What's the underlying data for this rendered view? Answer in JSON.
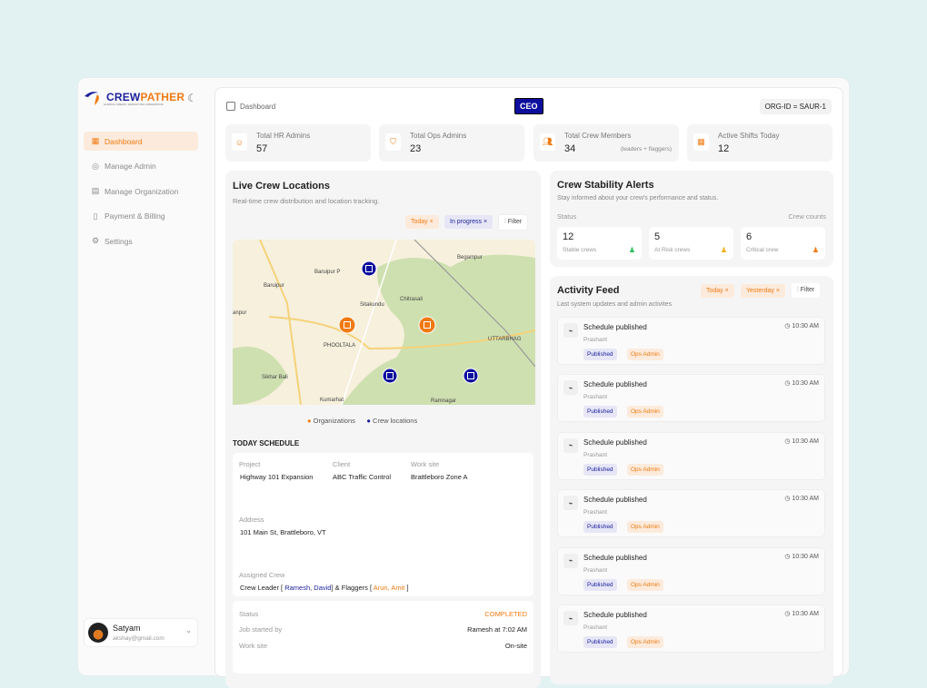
{
  "brand": {
    "name_a": "CREW",
    "name_b": "PATHER",
    "tagline": "GUIDING CREWS, SIMPLIFYING OPERATIONS"
  },
  "sidebar": {
    "items": [
      {
        "label": "Dashboard",
        "icon": "grid-icon",
        "active": true
      },
      {
        "label": "Manage Admin",
        "icon": "user-circle-icon"
      },
      {
        "label": "Manage Organization",
        "icon": "building-icon"
      },
      {
        "label": "Payment & Billing",
        "icon": "receipt-icon"
      },
      {
        "label": "Settings",
        "icon": "gear-icon"
      }
    ]
  },
  "user": {
    "name": "Satyam",
    "email": "akshay@gmail.com"
  },
  "header": {
    "breadcrumb": "Dashboard",
    "role": "CEO",
    "org_id": "ORG-ID = SAUR-1"
  },
  "stats": [
    {
      "label": "Total HR Admins",
      "value": "57",
      "note": ""
    },
    {
      "label": "Total Ops Admins",
      "value": "23",
      "note": ""
    },
    {
      "label": "Total Crew Members",
      "value": "34",
      "note": "(leaders + flaggers)"
    },
    {
      "label": "Active Shifts Today",
      "value": "12",
      "note": ""
    }
  ],
  "live": {
    "title": "Live Crew Locations",
    "subtitle": "Real-time crew distribution and location tracking.",
    "chip_today": "Today ×",
    "chip_progress": "In progress ×",
    "filter": "Filter",
    "legend_org": "Organizations",
    "legend_crew": "Crew locations",
    "map_labels": [
      "Baruipur P",
      "Baruipur",
      "Sitakundu",
      "Chitrasali",
      "Begampur",
      "PHOOLTALA",
      "UTTARBHAG",
      "Sikhar Bali",
      "Kumarhat",
      "Ramnagar",
      "anpur"
    ],
    "colors": {
      "org": "#f07a12",
      "crew": "#0e0e9e"
    }
  },
  "schedule": {
    "title": "TODAY SCHEDULE",
    "project_label": "Project",
    "project": "Highway 101 Expansion",
    "client_label": "Client",
    "client": "ABC Traffic Control",
    "site_label": "Work site",
    "site": "Brattleboro Zone A",
    "address_label": "Address",
    "address": "101 Main St, Brattleboro, VT",
    "crew_label": "Assigned Crew",
    "crew_a": "Crew Leader [ ",
    "leaders": "Ramesh, David",
    "crew_b": "] & Flaggers [ ",
    "flaggers": "Arun, Amit",
    "crew_c": " ]",
    "status_label": "Status",
    "status": "COMPLETED",
    "started_label": "Job started by",
    "started": "Ramesh at 7:02 AM",
    "worksite_label": "Work site",
    "worksite": "On-site"
  },
  "stability": {
    "title": "Crew Stability Alerts",
    "subtitle": "Stay informed about your crew's performance and status.",
    "status_label": "Status",
    "counts_label": "Crew counts",
    "cards": [
      {
        "value": "12",
        "label": "Stable crews",
        "color": "#2fbf5a"
      },
      {
        "value": "5",
        "label": "At Risk crews",
        "color": "#f0b020"
      },
      {
        "value": "6",
        "label": "Critical crew",
        "color": "#f07a12"
      }
    ]
  },
  "feed": {
    "title": "Activity Feed",
    "subtitle": "Last system updates and admin activites",
    "chip_today": "Today ×",
    "chip_yesterday": "Yesterday ×",
    "filter": "Filter",
    "items": [
      {
        "title": "Schedule published",
        "by": "Prashant",
        "time": "10:30 AM",
        "badge1": "Published",
        "badge2": "Ops Admin"
      },
      {
        "title": "Schedule published",
        "by": "Prashant",
        "time": "10:30 AM",
        "badge1": "Published",
        "badge2": "Ops Admin"
      },
      {
        "title": "Schedule published",
        "by": "Prashant",
        "time": "10:30 AM",
        "badge1": "Published",
        "badge2": "Ops Admin"
      },
      {
        "title": "Schedule published",
        "by": "Prashant",
        "time": "10:30 AM",
        "badge1": "Published",
        "badge2": "Ops Admin"
      },
      {
        "title": "Schedule published",
        "by": "Prashant",
        "time": "10:30 AM",
        "badge1": "Published",
        "badge2": "Ops Admin"
      },
      {
        "title": "Schedule published",
        "by": "Prashant",
        "time": "10:30 AM",
        "badge1": "Published",
        "badge2": "Ops Admin"
      }
    ]
  }
}
